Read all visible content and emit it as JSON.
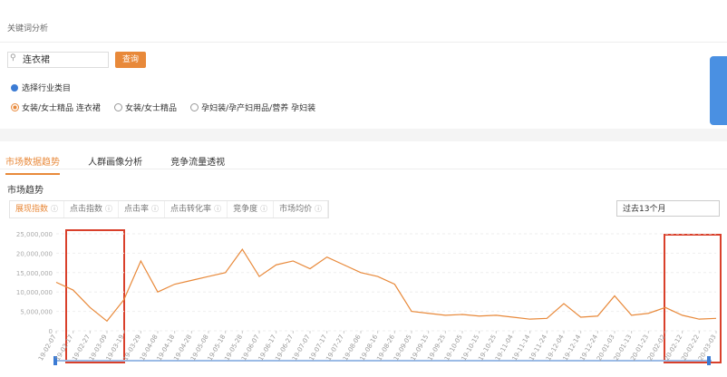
{
  "header": {
    "title": "关键词分析"
  },
  "search": {
    "query": "连衣裙",
    "button": "查询"
  },
  "category_select": {
    "label": "选择行业类目",
    "options": [
      "女装/女士精品 连衣裙",
      "女装/女士精品",
      "孕妇装/孕产妇用品/营养 孕妇装"
    ]
  },
  "tabs": [
    "市场数据趋势",
    "人群画像分析",
    "竞争流量透视"
  ],
  "section_title": "市场趋势",
  "metric_tabs": [
    "展现指数",
    "点击指数",
    "点击率",
    "点击转化率",
    "竞争度",
    "市场均价"
  ],
  "period": "过去13个月",
  "chart_data": {
    "type": "line",
    "color": "#e8893a",
    "grid": true,
    "categories": [
      "19-02-07",
      "19-02-17",
      "19-02-27",
      "19-03-09",
      "19-03-19",
      "19-03-29",
      "19-04-08",
      "19-04-18",
      "19-04-28",
      "19-05-08",
      "19-05-18",
      "19-05-28",
      "19-06-07",
      "19-06-17",
      "19-06-27",
      "19-07-07",
      "19-07-17",
      "19-07-27",
      "19-08-06",
      "19-08-16",
      "19-08-26",
      "19-09-05",
      "19-09-15",
      "19-09-25",
      "19-10-05",
      "19-10-15",
      "19-10-25",
      "19-11-04",
      "19-11-14",
      "19-11-24",
      "19-12-04",
      "19-12-14",
      "19-12-24",
      "20-01-03",
      "20-01-13",
      "20-01-23",
      "20-02-02",
      "20-02-12",
      "20-02-22",
      "20-03-03"
    ],
    "values": [
      12500000,
      10500000,
      6000000,
      2500000,
      8000000,
      18000000,
      10000000,
      12000000,
      13000000,
      14000000,
      15000000,
      21000000,
      14000000,
      17000000,
      18000000,
      16000000,
      19000000,
      17000000,
      15000000,
      14000000,
      12000000,
      5000000,
      4500000,
      4000000,
      4200000,
      3800000,
      4000000,
      3500000,
      3000000,
      3200000,
      7000000,
      3500000,
      3800000,
      9000000,
      4000000,
      4500000,
      6000000,
      4000000,
      3000000,
      3200000
    ],
    "ylim": [
      0,
      25000000
    ],
    "yticks": [
      0,
      {
        "value": 5000000,
        "label": "5,000,000"
      },
      {
        "value": 10000000,
        "label": "10,000,000"
      },
      {
        "value": 15000000,
        "label": "15,000,000"
      },
      {
        "value": 20000000,
        "label": "20,000,000"
      },
      {
        "value": 25000000,
        "label": "25,000,000"
      }
    ]
  }
}
